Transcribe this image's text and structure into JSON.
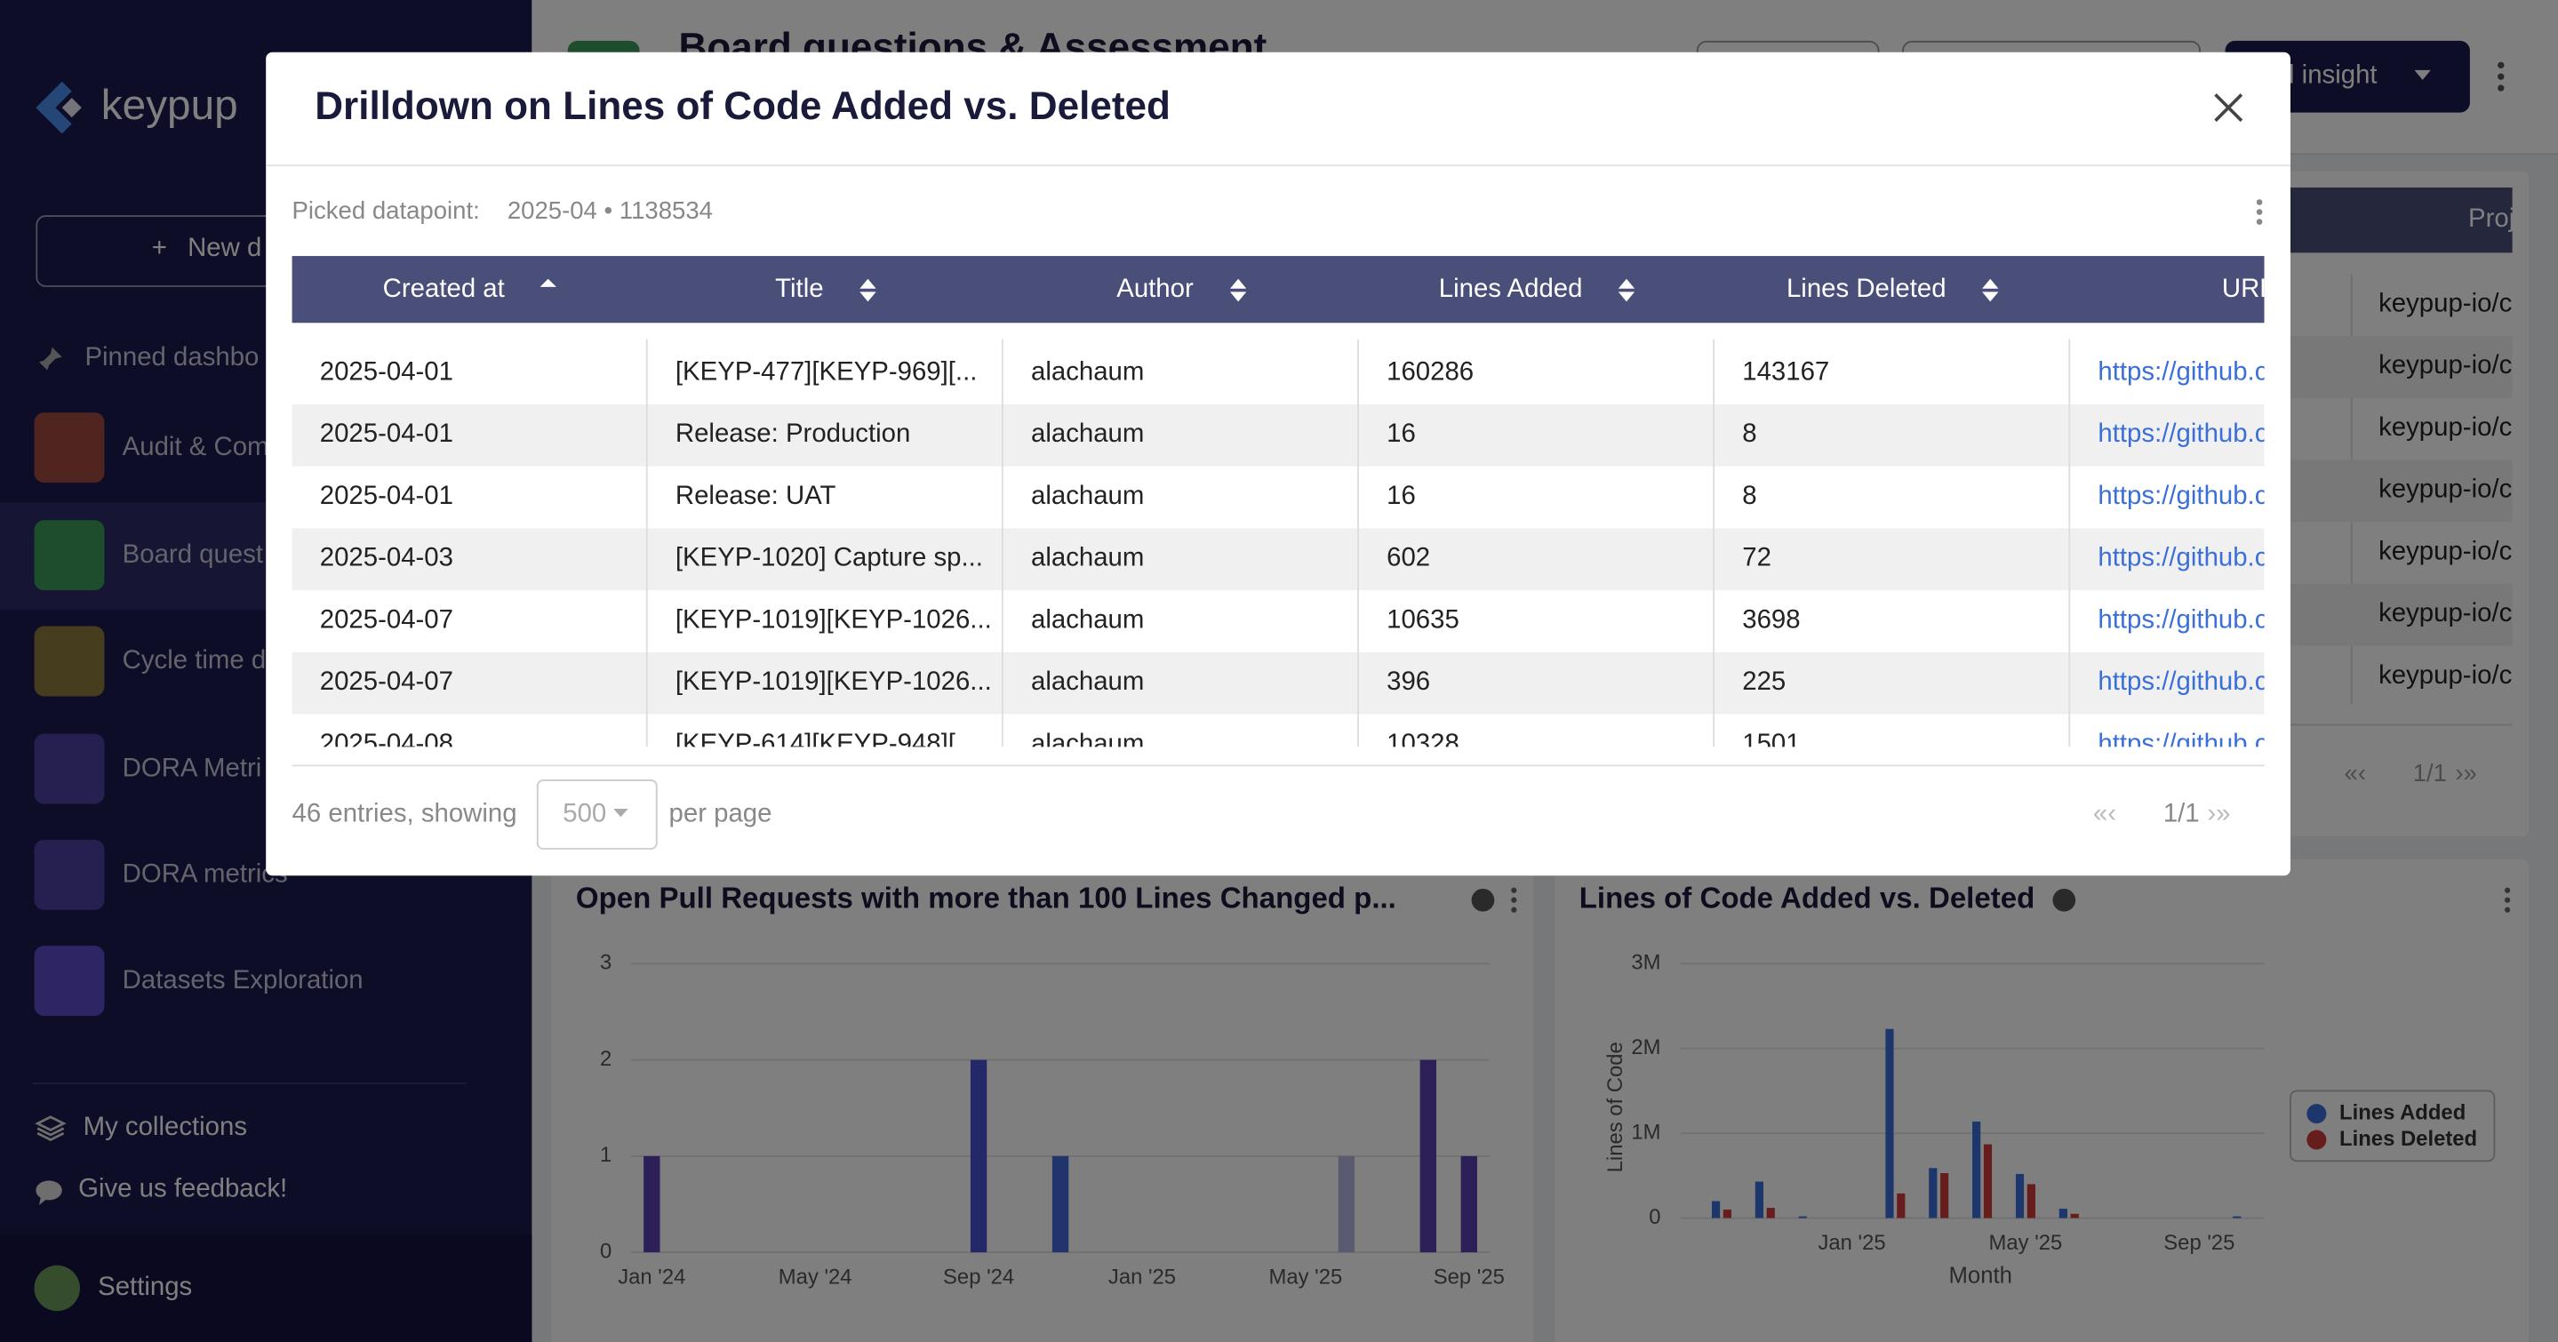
{
  "sidebar": {
    "logo": "keypup",
    "new_button": "New d",
    "pinned": "Pinned dashbo",
    "items": [
      "Audit & Com",
      "Board quest",
      "Cycle time d",
      "DORA Metri",
      "DORA metrics",
      "Datasets Exploration"
    ],
    "collections": "My collections",
    "feedback": "Give us feedback!",
    "settings": "Settings"
  },
  "dashboard": {
    "title": "Board questions & Assessment",
    "add_button": "Add insight",
    "table_header": "Proj",
    "table_rows": [
      "keypup-io/c",
      "keypup-io/c",
      "keypup-io/c",
      "keypup-io/c",
      "keypup-io/c",
      "keypup-io/c",
      "keypup-io/c"
    ],
    "pagination": "1/1"
  },
  "chart_data": [
    {
      "type": "bar",
      "title": "Open Pull Requests with more than 100 Lines Changed p...",
      "categories": [
        "Jan '24",
        null,
        null,
        null,
        "May '24",
        null,
        null,
        null,
        "Sep '24",
        null,
        null,
        null,
        "Jan '25",
        null,
        null,
        null,
        "May '25",
        null,
        null,
        null,
        "Sep '25"
      ],
      "values": [
        1,
        0,
        0,
        0,
        0,
        0,
        0,
        0,
        2,
        0,
        1,
        0,
        0,
        0,
        0,
        0,
        0,
        1,
        0,
        2,
        1
      ],
      "colors": [
        "#5b3fb0",
        "#5b3fb0",
        "#5b3fb0",
        "#5b3fb0",
        "#5b3fb0",
        "#5b3fb0",
        "#5b3fb0",
        "#5b3fb0",
        "#4a50d0",
        "#4a50d0",
        "#4468d8",
        "#4468d8",
        "#4468d8",
        "#4468d8",
        "#4468d8",
        "#4468d8",
        "#4468d8",
        "#b4b4e0",
        "#5b3fb0",
        "#5b3fb0",
        "#5b3fb0"
      ],
      "ylim": [
        0,
        3
      ],
      "yticks": [
        0,
        1,
        2,
        3
      ],
      "grid": true
    },
    {
      "type": "bar",
      "title": "Lines of Code Added vs. Deleted",
      "y_label": "Lines of Code",
      "x_label": "Month",
      "categories": [
        null,
        null,
        null,
        "Jan '25",
        null,
        null,
        null,
        "May '25",
        null,
        null,
        null,
        "Sep '25",
        null
      ],
      "series": [
        {
          "name": "Lines Added",
          "color": "#3b6fd8",
          "values": [
            200000,
            430000,
            20000,
            0,
            2230000,
            590000,
            1138534,
            520000,
            110000,
            0,
            0,
            0,
            20000
          ]
        },
        {
          "name": "Lines Deleted",
          "color": "#d13b3b",
          "values": [
            100000,
            120000,
            0,
            0,
            290000,
            530000,
            870000,
            400000,
            50000,
            0,
            0,
            0,
            0
          ]
        }
      ],
      "ylim": [
        0,
        3000000
      ],
      "yticks": [
        0,
        {
          "value": 1000000,
          "label": "1M"
        },
        {
          "value": 2000000,
          "label": "2M"
        },
        {
          "value": 3000000,
          "label": "3M"
        }
      ],
      "grid": true,
      "legend": "right"
    }
  ],
  "modal": {
    "title": "Drilldown on Lines of Code Added vs. Deleted",
    "picked_label": "Picked datapoint:",
    "picked_value": "2025-04 • 1138534",
    "table": {
      "columns": [
        "Created at",
        "Title",
        "Author",
        "Lines Added",
        "Lines Deleted",
        "URL"
      ],
      "rows": [
        [
          "2025-04-01",
          "[KEYP-477][KEYP-969][...",
          "alachaum",
          160286,
          143167,
          "https://github.c"
        ],
        [
          "2025-04-01",
          "Release: Production",
          "alachaum",
          16,
          8,
          "https://github.c"
        ],
        [
          "2025-04-01",
          "Release: UAT",
          "alachaum",
          16,
          8,
          "https://github.c"
        ],
        [
          "2025-04-03",
          "[KEYP-1020] Capture sp...",
          "alachaum",
          602,
          72,
          "https://github.c"
        ],
        [
          "2025-04-07",
          "[KEYP-1019][KEYP-1026...",
          "alachaum",
          10635,
          3698,
          "https://github.c"
        ],
        [
          "2025-04-07",
          "[KEYP-1019][KEYP-1026...",
          "alachaum",
          396,
          225,
          "https://github.c"
        ],
        [
          "2025-04-08",
          "[KEYP-614][KEYP-948][...",
          "alachaum",
          10328,
          1501,
          "https://github.c"
        ]
      ]
    },
    "entries": "46 entries, showing",
    "page_size": "500",
    "per_page": "per page",
    "pagination": "1/1"
  }
}
